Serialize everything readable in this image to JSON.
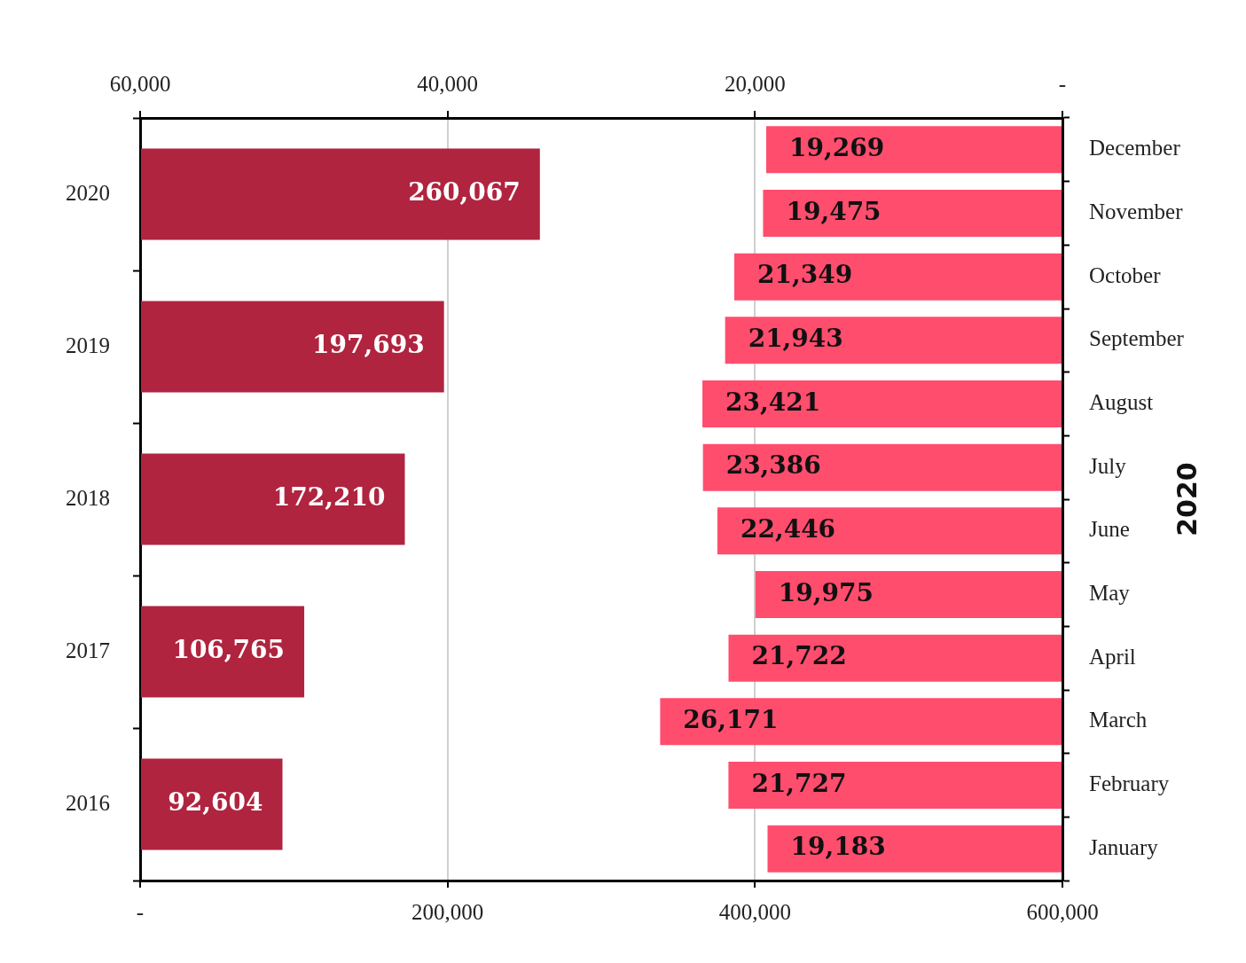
{
  "chart_data": [
    {
      "type": "bar",
      "orientation": "horizontal",
      "categories": [
        "2020",
        "2019",
        "2018",
        "2017",
        "2016"
      ],
      "values": [
        260067,
        197693,
        172210,
        106765,
        92604
      ],
      "value_labels": [
        "260,067",
        "197,693",
        "172,210",
        "106,765",
        "92,604"
      ],
      "color": "#b0243f",
      "xlim": [
        0,
        600000
      ],
      "xticks": [
        {
          "value": 0,
          "label": "-"
        },
        {
          "value": 200000,
          "label": "200,000"
        },
        {
          "value": 400000,
          "label": "400,000"
        },
        {
          "value": 600000,
          "label": "600,000"
        }
      ],
      "grid": "x"
    },
    {
      "type": "bar",
      "orientation": "horizontal",
      "categories": [
        "December",
        "November",
        "October",
        "September",
        "August",
        "July",
        "June",
        "May",
        "April",
        "March",
        "February",
        "January"
      ],
      "values": [
        19269,
        19475,
        21349,
        21943,
        23421,
        23386,
        22446,
        19975,
        21722,
        26171,
        21727,
        19183
      ],
      "value_labels": [
        "19,269",
        "19,475",
        "21,349",
        "21,943",
        "23,421",
        "23,386",
        "22,446",
        "19,975",
        "21,722",
        "26,171",
        "21,727",
        "19,183"
      ],
      "color": "#ff4d6e",
      "xlim": [
        60000,
        0
      ],
      "xticks": [
        {
          "value": 60000,
          "label": "60,000"
        },
        {
          "value": 40000,
          "label": "40,000"
        },
        {
          "value": 20000,
          "label": "20,000"
        },
        {
          "value": 0,
          "label": "-"
        }
      ],
      "ylabel": "2020"
    }
  ]
}
